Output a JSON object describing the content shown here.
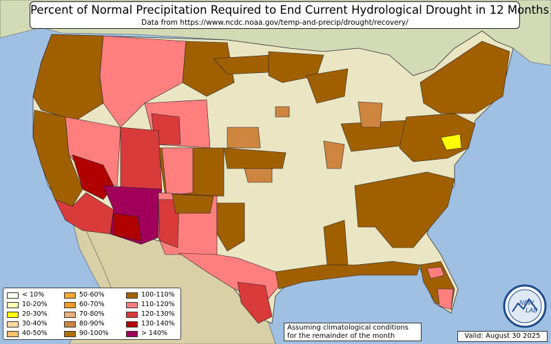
{
  "title": "Percent of Normal Precipitation Required to End Current Hydrological Drought in 12 Months",
  "subtitle": "Data from https://www.ncdc.noaa.gov/temp-and-precip/drought/recovery/",
  "legend": [
    {
      "label": "< 10%",
      "color": "#fffff0"
    },
    {
      "label": "10-20%",
      "color": "#ffffb4"
    },
    {
      "label": "20-30%",
      "color": "#ffff00"
    },
    {
      "label": "30-40%",
      "color": "#ffd9a0"
    },
    {
      "label": "40-50%",
      "color": "#ffc070"
    },
    {
      "label": "50-60%",
      "color": "#f7a935"
    },
    {
      "label": "60-70%",
      "color": "#f39c2b"
    },
    {
      "label": "70-80%",
      "color": "#e8b07a"
    },
    {
      "label": "80-90%",
      "color": "#cd853f"
    },
    {
      "label": "90-100%",
      "color": "#b07000"
    },
    {
      "label": "100-110%",
      "color": "#a06000"
    },
    {
      "label": "110-120%",
      "color": "#ff7f7f"
    },
    {
      "label": "120-130%",
      "color": "#d93b3b"
    },
    {
      "label": "130-140%",
      "color": "#b00000"
    },
    {
      "label": "> 140%",
      "color": "#a0005a"
    }
  ],
  "note": {
    "line1": "Assuming climatological conditions",
    "line2": "for the remainder of the month"
  },
  "valid": "Valid: August 30 2025",
  "logo": {
    "text_top": "NEW",
    "text_bottom": "LAB"
  },
  "colors": {
    "ocean": "#9fbfe3",
    "land": "#eae6c4",
    "mexico": "#d9d0a8",
    "canada": "#d3dbb6"
  }
}
